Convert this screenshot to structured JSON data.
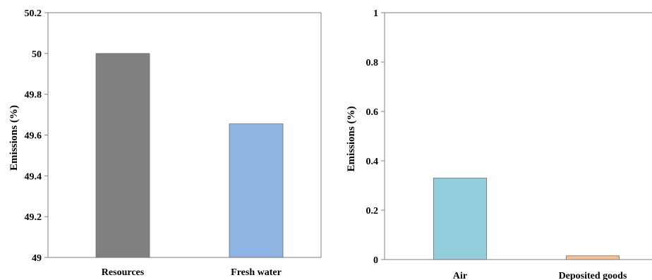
{
  "chart_data": [
    {
      "type": "bar",
      "categories": [
        "Resources",
        "Fresh water"
      ],
      "values": [
        50.0,
        49.655
      ],
      "ylabel": "Emissions (%)",
      "ylim": [
        49,
        50.2
      ],
      "yticks": [
        "49",
        "49.2",
        "49.4",
        "49.6",
        "49.8",
        "50",
        "50.2"
      ],
      "colors": [
        "#808080",
        "#8EB4E3"
      ],
      "grid": false,
      "legend": "none"
    },
    {
      "type": "bar",
      "categories": [
        "Air",
        "Deposited goods"
      ],
      "values": [
        0.33,
        0.015
      ],
      "ylabel": "Emissions (%)",
      "ylim": [
        0,
        1
      ],
      "yticks": [
        "0",
        "0.2",
        "0.4",
        "0.6",
        "0.8",
        "1"
      ],
      "colors": [
        "#92CDDC",
        "#FAC090"
      ],
      "grid": false,
      "legend": "none"
    }
  ]
}
